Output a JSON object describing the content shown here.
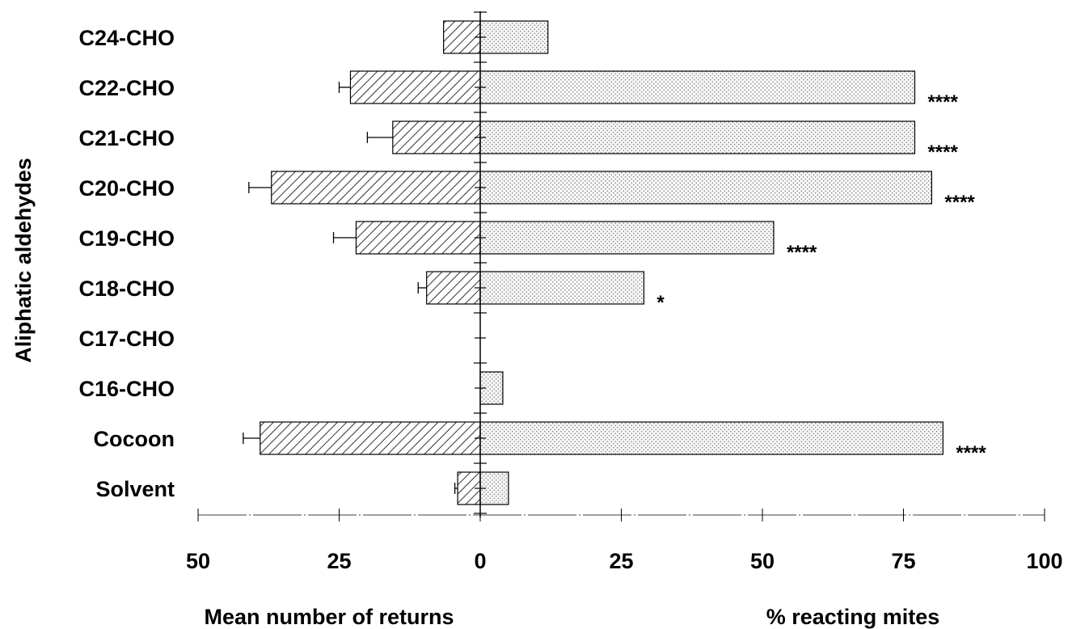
{
  "chart_data": {
    "type": "bar",
    "ylabel": "Aliphatic aldehydes",
    "categories": [
      "C24-CHO",
      "C22-CHO",
      "C21-CHO",
      "C20-CHO",
      "C19-CHO",
      "C18-CHO",
      "C17-CHO",
      "C16-CHO",
      "Cocoon",
      "Solvent"
    ],
    "left_axis": {
      "label": "Mean number of returns",
      "ticks": [
        "50",
        "25",
        "0"
      ],
      "range": [
        50,
        0
      ]
    },
    "right_axis": {
      "label": "% reacting mites",
      "ticks": [
        "25",
        "50",
        "75",
        "100"
      ],
      "range": [
        0,
        100
      ]
    },
    "series": [
      {
        "name": "Mean number of returns",
        "side": "left",
        "fill": "hatched",
        "values": [
          6.5,
          23,
          15.5,
          37,
          22,
          9.5,
          0,
          0,
          39,
          4
        ],
        "errors": [
          0,
          2,
          4.5,
          4,
          4,
          1.5,
          0,
          0,
          3,
          0.5
        ]
      },
      {
        "name": "% reacting mites",
        "side": "right",
        "fill": "dotted",
        "values": [
          12,
          77,
          77,
          80,
          52,
          29,
          0,
          4,
          82,
          5
        ]
      }
    ],
    "significance": [
      "",
      "****",
      "****",
      "****",
      "****",
      "*",
      "",
      "",
      "****",
      ""
    ]
  },
  "colors": {
    "ink": "#000000",
    "background": "#ffffff",
    "dot_fill": "#f2f2f2"
  }
}
